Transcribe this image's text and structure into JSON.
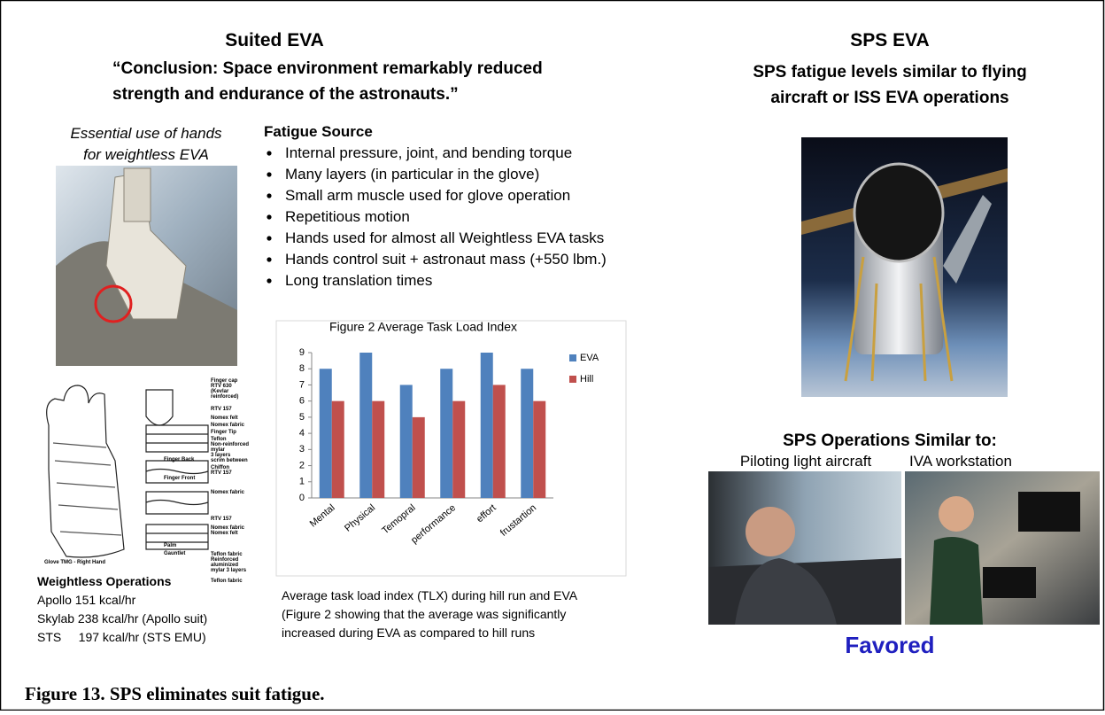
{
  "figure": {
    "left": {
      "title": "Suited EVA",
      "quote": [
        "“Conclusion:  Space environment remarkably reduced",
        "strength and endurance of the astronauts.”"
      ],
      "hands_caption": [
        "Essential use of hands",
        "for weightless EVA"
      ],
      "fatigue_source": {
        "title": "Fatigue Source",
        "items": [
          "Internal pressure, joint, and bending torque",
          "Many layers (in particular in the glove)",
          "Small arm muscle used for glove operation",
          "Repetitious motion",
          "Hands used for almost all Weightless EVA tasks",
          "Hands control suit + astronaut mass (+550 lbm.)",
          "Long translation times"
        ]
      },
      "glove_labels": [
        "Finger cap",
        "RTV 630",
        "(Kevlar",
        "reinforced)",
        "RTV 157",
        "Nomex felt",
        "Nomex fabric",
        "Finger Tip",
        "Teflon",
        "Non-reinforced",
        "mylar",
        "3 layers",
        "scrim between",
        "Chiffon",
        "RTV 157",
        "Finger Back",
        "Nomex fabric",
        "Finger Front",
        "RTV 157",
        "Nomex fabric",
        "Nomex felt",
        "Palm",
        "Teflon fabric",
        "Reinforced",
        "aluminized",
        "mylar 3 layers",
        "Gauntlet",
        "Teflon fabric",
        "Glove TMG - Right Hand"
      ],
      "weightless_ops": {
        "title": "Weightless Operations",
        "lines": [
          "Apollo 151 kcal/hr",
          "Skylab 238 kcal/hr (Apollo suit)",
          "STS     197 kcal/hr (STS EMU)"
        ]
      },
      "chart_caption": [
        "Average task load index (TLX) during hill run and EVA",
        "(Figure 2 showing that the average was significantly",
        "increased during EVA as compared to hill runs"
      ]
    },
    "right": {
      "title": "SPS EVA",
      "subtitle": [
        "SPS fatigue levels similar to flying",
        "aircraft or ISS EVA operations"
      ],
      "ops_title": "SPS Operations Similar to:",
      "ops_left": "Piloting light aircraft",
      "ops_right": "IVA workstation",
      "verdict": "Favored"
    },
    "caption": "Figure 13. SPS eliminates suit fatigue."
  },
  "chart_data": {
    "type": "bar",
    "title": "Figure 2 Average Task Load Index",
    "categories": [
      "Mental",
      "Physical",
      "Temopral",
      "performance",
      "effort",
      "frustartion"
    ],
    "series": [
      {
        "name": "EVA",
        "color": "#4f81bd",
        "values": [
          8,
          9,
          7,
          8,
          9,
          8
        ]
      },
      {
        "name": "Hill",
        "color": "#c0504d",
        "values": [
          6,
          6,
          5,
          6,
          7,
          6
        ]
      }
    ],
    "ylim": [
      0,
      9
    ],
    "yticks": [
      0,
      1,
      2,
      3,
      4,
      5,
      6,
      7,
      8,
      9
    ],
    "legend": "right"
  }
}
